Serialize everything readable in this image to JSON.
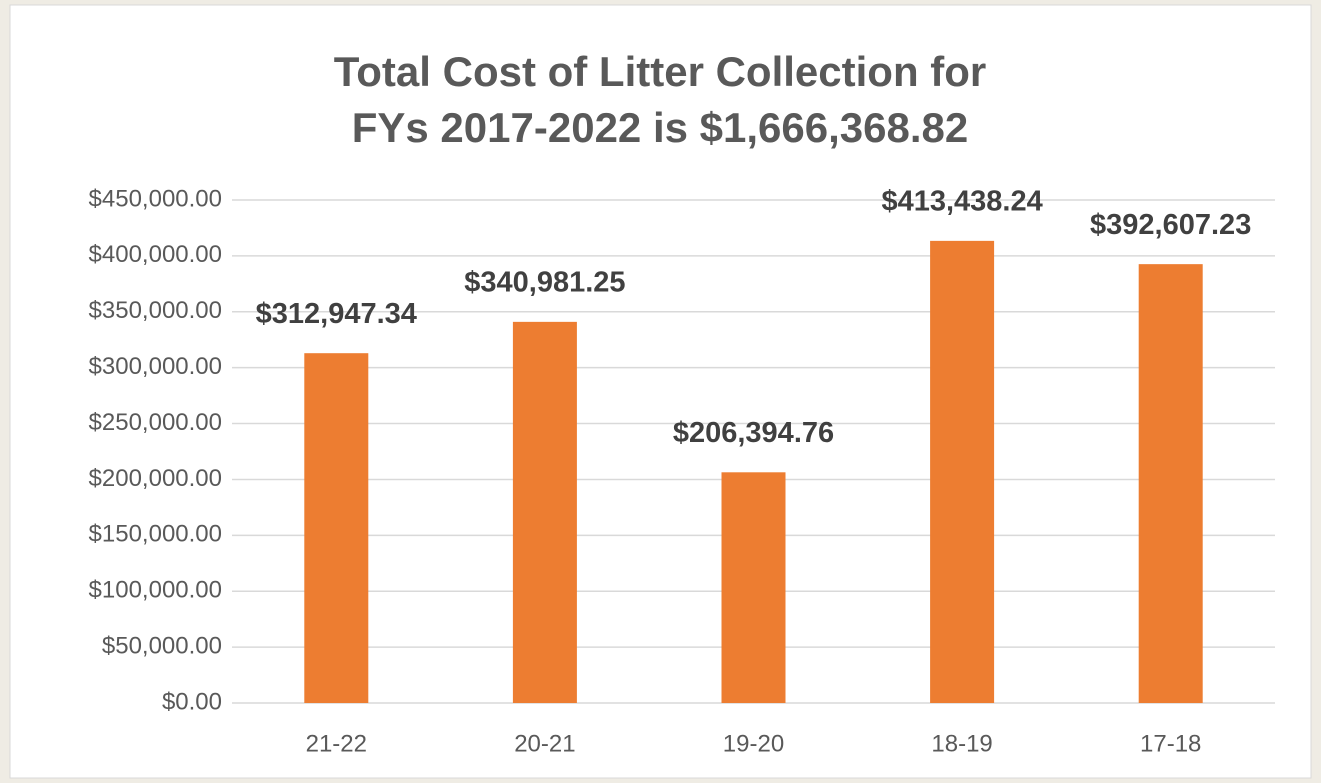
{
  "chart_data": {
    "type": "bar",
    "title": [
      "Total Cost of Litter Collection for",
      "FYs 2017-2022 is $1,666,368.82"
    ],
    "categories": [
      "21-22",
      "20-21",
      "19-20",
      "18-19",
      "17-18"
    ],
    "values": [
      312947.34,
      340981.25,
      206394.76,
      413438.24,
      392607.23
    ],
    "value_labels": [
      "$312,947.34",
      "$340,981.25",
      "$206,394.76",
      "$413,438.24",
      "$392,607.23"
    ],
    "color": "#ed7d31",
    "ylim": [
      0,
      450000
    ],
    "yticks": [
      {
        "value": 0,
        "label": "$0.00"
      },
      {
        "value": 50000,
        "label": "$50,000.00"
      },
      {
        "value": 100000,
        "label": "$100,000.00"
      },
      {
        "value": 150000,
        "label": "$150,000.00"
      },
      {
        "value": 200000,
        "label": "$200,000.00"
      },
      {
        "value": 250000,
        "label": "$250,000.00"
      },
      {
        "value": 300000,
        "label": "$300,000.00"
      },
      {
        "value": 350000,
        "label": "$350,000.00"
      },
      {
        "value": 400000,
        "label": "$400,000.00"
      },
      {
        "value": 450000,
        "label": "$450,000.00"
      }
    ],
    "grid": true
  }
}
